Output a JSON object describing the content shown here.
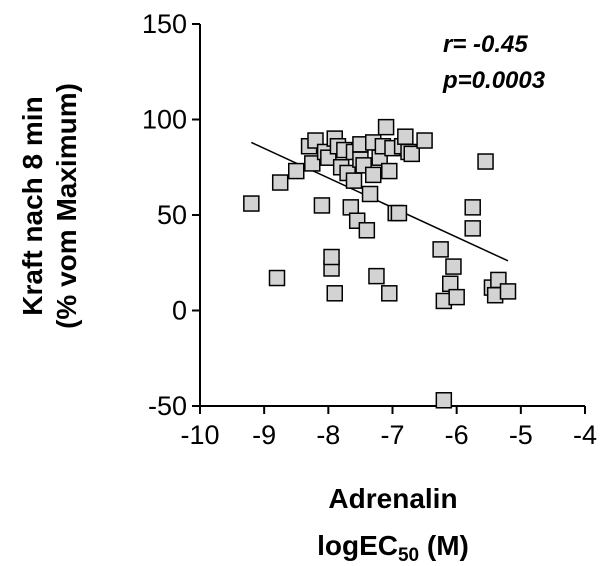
{
  "chart_data": {
    "type": "scatter",
    "title": "",
    "xlabel_line1": "Adrenalin",
    "xlabel_line2_main": "logEC",
    "xlabel_line2_sub": "50",
    "xlabel_line2_tail": " (M)",
    "ylabel_line1": "Kraft nach 8 min",
    "ylabel_line2": "(% vom Maximum)",
    "xlim": [
      -10,
      -4
    ],
    "ylim": [
      -50,
      150
    ],
    "xticks": [
      -10,
      -9,
      -8,
      -7,
      -6,
      -5,
      -4
    ],
    "yticks": [
      -50,
      0,
      50,
      100,
      150
    ],
    "xtick_labels": [
      "-10",
      "-9",
      "-8",
      "-7",
      "-6",
      "-5",
      "-4"
    ],
    "ytick_labels": [
      "-50",
      "0",
      "50",
      "100",
      "150"
    ],
    "grid": false,
    "annotations": {
      "r": "r= -0.45",
      "p": "p=0.0003"
    },
    "marker": {
      "shape": "square",
      "fill": "#d3d3d3",
      "stroke": "#000000"
    },
    "regression_line": {
      "x": [
        -9.2,
        -5.2
      ],
      "y": [
        88,
        26
      ]
    },
    "points": [
      {
        "x": -9.2,
        "y": 56
      },
      {
        "x": -8.8,
        "y": 17
      },
      {
        "x": -8.75,
        "y": 67
      },
      {
        "x": -8.5,
        "y": 73
      },
      {
        "x": -8.3,
        "y": 86
      },
      {
        "x": -8.25,
        "y": 77
      },
      {
        "x": -8.2,
        "y": 89
      },
      {
        "x": -8.1,
        "y": 55
      },
      {
        "x": -8.05,
        "y": 83
      },
      {
        "x": -8.0,
        "y": 80
      },
      {
        "x": -7.95,
        "y": 22
      },
      {
        "x": -7.95,
        "y": 28
      },
      {
        "x": -7.9,
        "y": 9
      },
      {
        "x": -7.9,
        "y": 90
      },
      {
        "x": -7.85,
        "y": 86
      },
      {
        "x": -7.8,
        "y": 75
      },
      {
        "x": -7.75,
        "y": 84
      },
      {
        "x": -7.7,
        "y": 72
      },
      {
        "x": -7.65,
        "y": 54
      },
      {
        "x": -7.6,
        "y": 68
      },
      {
        "x": -7.6,
        "y": 83
      },
      {
        "x": -7.55,
        "y": 47
      },
      {
        "x": -7.5,
        "y": 79
      },
      {
        "x": -7.5,
        "y": 87
      },
      {
        "x": -7.45,
        "y": 76
      },
      {
        "x": -7.4,
        "y": 42
      },
      {
        "x": -7.35,
        "y": 61
      },
      {
        "x": -7.3,
        "y": 71
      },
      {
        "x": -7.3,
        "y": 88
      },
      {
        "x": -7.25,
        "y": 18
      },
      {
        "x": -7.2,
        "y": 80
      },
      {
        "x": -7.15,
        "y": 86
      },
      {
        "x": -7.1,
        "y": 96
      },
      {
        "x": -7.05,
        "y": 73
      },
      {
        "x": -7.05,
        "y": 9
      },
      {
        "x": -7.0,
        "y": 85
      },
      {
        "x": -6.95,
        "y": 51
      },
      {
        "x": -6.9,
        "y": 51
      },
      {
        "x": -6.85,
        "y": 86
      },
      {
        "x": -6.8,
        "y": 91
      },
      {
        "x": -6.75,
        "y": 83
      },
      {
        "x": -6.7,
        "y": 82
      },
      {
        "x": -6.5,
        "y": 89
      },
      {
        "x": -6.25,
        "y": 32
      },
      {
        "x": -6.2,
        "y": 5
      },
      {
        "x": -6.2,
        "y": -47
      },
      {
        "x": -6.1,
        "y": 14
      },
      {
        "x": -6.05,
        "y": 23
      },
      {
        "x": -6.0,
        "y": 7
      },
      {
        "x": -5.75,
        "y": 54
      },
      {
        "x": -5.75,
        "y": 43
      },
      {
        "x": -5.55,
        "y": 78
      },
      {
        "x": -5.45,
        "y": 12
      },
      {
        "x": -5.4,
        "y": 8
      },
      {
        "x": -5.35,
        "y": 16
      },
      {
        "x": -5.2,
        "y": 10
      }
    ]
  }
}
